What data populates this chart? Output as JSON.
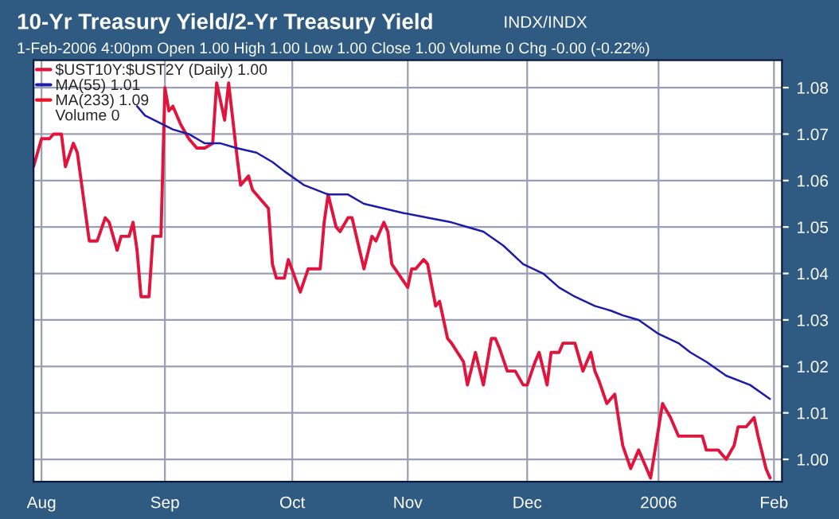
{
  "chart_data": {
    "type": "line",
    "title": "10-Yr Treasury Yield/2-Yr Treasury Yield",
    "subtitle": "1-Feb-2006 4:00pm Open 1.00 High 1.00 Low 1.00 Close 1.00 Volume 0 Chg -0.00 (-0.22%)",
    "annotations": [
      "INDX/INDX",
      "Volume 0"
    ],
    "xlim": [
      "2005-07-30",
      "2006-02-03"
    ],
    "xticks": [
      {
        "value": "2005-08-01",
        "label": "Aug"
      },
      {
        "value": "2005-09-01",
        "label": "Sep"
      },
      {
        "value": "2005-10-03",
        "label": "Oct"
      },
      {
        "value": "2005-11-01",
        "label": "Nov"
      },
      {
        "value": "2005-12-01",
        "label": "Dec"
      },
      {
        "value": "2006-01-03",
        "label": "2006"
      },
      {
        "value": "2006-02-01",
        "label": "Feb"
      }
    ],
    "ylim": [
      0.9952,
      1.0859
    ],
    "yticks": [
      {
        "value": 1.0,
        "label": "1.00"
      },
      {
        "value": 1.01,
        "label": "1.01"
      },
      {
        "value": 1.02,
        "label": "1.02"
      },
      {
        "value": 1.03,
        "label": "1.03"
      },
      {
        "value": 1.04,
        "label": "1.04"
      },
      {
        "value": 1.05,
        "label": "1.05"
      },
      {
        "value": 1.06,
        "label": "1.06"
      },
      {
        "value": 1.07,
        "label": "1.07"
      },
      {
        "value": 1.08,
        "label": "1.08"
      }
    ],
    "grid": true,
    "legend": "top left",
    "series": [
      {
        "name": "$UST10Y:$UST2Y (Daily) 1.00",
        "color": "#e0143c",
        "x": [
          "2005-07-30",
          "2005-08-01",
          "2005-08-03",
          "2005-08-04",
          "2005-08-06",
          "2005-08-07",
          "2005-08-09",
          "2005-08-10",
          "2005-08-13",
          "2005-08-15",
          "2005-08-17",
          "2005-08-18",
          "2005-08-20",
          "2005-08-21",
          "2005-08-23",
          "2005-08-24",
          "2005-08-25",
          "2005-08-26",
          "2005-08-28",
          "2005-08-29",
          "2005-08-31",
          "2005-09-01",
          "2005-09-02",
          "2005-09-03",
          "2005-09-05",
          "2005-09-07",
          "2005-09-09",
          "2005-09-11",
          "2005-09-13",
          "2005-09-14",
          "2005-09-16",
          "2005-09-17",
          "2005-09-19",
          "2005-09-20",
          "2005-09-22",
          "2005-09-23",
          "2005-09-25",
          "2005-09-27",
          "2005-09-28",
          "2005-09-29",
          "2005-10-01",
          "2005-10-02",
          "2005-10-05",
          "2005-10-07",
          "2005-10-09",
          "2005-10-10",
          "2005-10-11",
          "2005-10-12",
          "2005-10-14",
          "2005-10-15",
          "2005-10-17",
          "2005-10-18",
          "2005-10-21",
          "2005-10-23",
          "2005-10-24",
          "2005-10-26",
          "2005-10-27",
          "2005-10-28",
          "2005-11-01",
          "2005-11-02",
          "2005-11-03",
          "2005-11-05",
          "2005-11-06",
          "2005-11-08",
          "2005-11-09",
          "2005-11-11",
          "2005-11-12",
          "2005-11-15",
          "2005-11-16",
          "2005-11-18",
          "2005-11-20",
          "2005-11-22",
          "2005-11-23",
          "2005-11-24",
          "2005-11-26",
          "2005-11-28",
          "2005-11-30",
          "2005-12-01",
          "2005-12-03",
          "2005-12-04",
          "2005-12-06",
          "2005-12-07",
          "2005-12-09",
          "2005-12-10",
          "2005-12-13",
          "2005-12-15",
          "2005-12-17",
          "2005-12-18",
          "2005-12-19",
          "2005-12-21",
          "2005-12-23",
          "2005-12-25",
          "2005-12-27",
          "2005-12-29",
          "2005-12-31",
          "2006-01-01",
          "2006-01-04",
          "2006-01-06",
          "2006-01-08",
          "2006-01-12",
          "2006-01-14",
          "2006-01-15",
          "2006-01-18",
          "2006-01-20",
          "2006-01-22",
          "2006-01-23",
          "2006-01-25",
          "2006-01-27",
          "2006-01-28",
          "2006-01-30",
          "2006-01-31"
        ],
        "values": [
          1.063,
          1.069,
          1.069,
          1.07,
          1.07,
          1.063,
          1.068,
          1.066,
          1.047,
          1.047,
          1.052,
          1.051,
          1.045,
          1.048,
          1.048,
          1.051,
          1.045,
          1.035,
          1.035,
          1.048,
          1.048,
          1.08,
          1.075,
          1.076,
          1.072,
          1.069,
          1.067,
          1.067,
          1.068,
          1.081,
          1.073,
          1.081,
          1.066,
          1.059,
          1.061,
          1.058,
          1.056,
          1.054,
          1.042,
          1.039,
          1.039,
          1.043,
          1.036,
          1.041,
          1.041,
          1.041,
          1.051,
          1.057,
          1.05,
          1.049,
          1.052,
          1.052,
          1.041,
          1.048,
          1.047,
          1.051,
          1.049,
          1.042,
          1.037,
          1.041,
          1.041,
          1.043,
          1.042,
          1.033,
          1.034,
          1.026,
          1.025,
          1.021,
          1.016,
          1.023,
          1.016,
          1.026,
          1.026,
          1.024,
          1.019,
          1.019,
          1.016,
          1.016,
          1.021,
          1.023,
          1.016,
          1.023,
          1.023,
          1.025,
          1.025,
          1.019,
          1.023,
          1.019,
          1.017,
          1.012,
          1.014,
          1.003,
          0.998,
          1.002,
          0.998,
          0.996,
          1.012,
          1.009,
          1.005,
          1.005,
          1.005,
          1.002,
          1.002,
          1.0,
          1.003,
          1.007,
          1.007,
          1.009,
          1.005,
          0.998,
          0.996
        ],
        "line_style": "solid"
      },
      {
        "name": "MA(55) 1.01",
        "color": "#1c1ca8",
        "x": [
          "2005-08-25",
          "2005-08-27",
          "2005-09-03",
          "2005-09-07",
          "2005-09-11",
          "2005-09-15",
          "2005-09-19",
          "2005-09-24",
          "2005-09-28",
          "2005-10-01",
          "2005-10-06",
          "2005-10-12",
          "2005-10-17",
          "2005-10-21",
          "2005-10-31",
          "2005-11-06",
          "2005-11-12",
          "2005-11-16",
          "2005-11-20",
          "2005-11-25",
          "2005-11-30",
          "2005-12-05",
          "2005-12-09",
          "2005-12-13",
          "2005-12-18",
          "2005-12-22",
          "2005-12-25",
          "2005-12-29",
          "2006-01-03",
          "2006-01-08",
          "2006-01-11",
          "2006-01-15",
          "2006-01-20",
          "2006-01-26",
          "2006-01-31"
        ],
        "values": [
          1.076,
          1.074,
          1.071,
          1.07,
          1.068,
          1.068,
          1.067,
          1.066,
          1.064,
          1.062,
          1.059,
          1.057,
          1.057,
          1.055,
          1.053,
          1.052,
          1.051,
          1.05,
          1.049,
          1.046,
          1.042,
          1.04,
          1.037,
          1.035,
          1.033,
          1.032,
          1.031,
          1.03,
          1.027,
          1.025,
          1.023,
          1.021,
          1.018,
          1.016,
          1.013
        ]
      },
      {
        "name": "MA(233) 1.09",
        "color": "#ee1122"
      }
    ]
  }
}
